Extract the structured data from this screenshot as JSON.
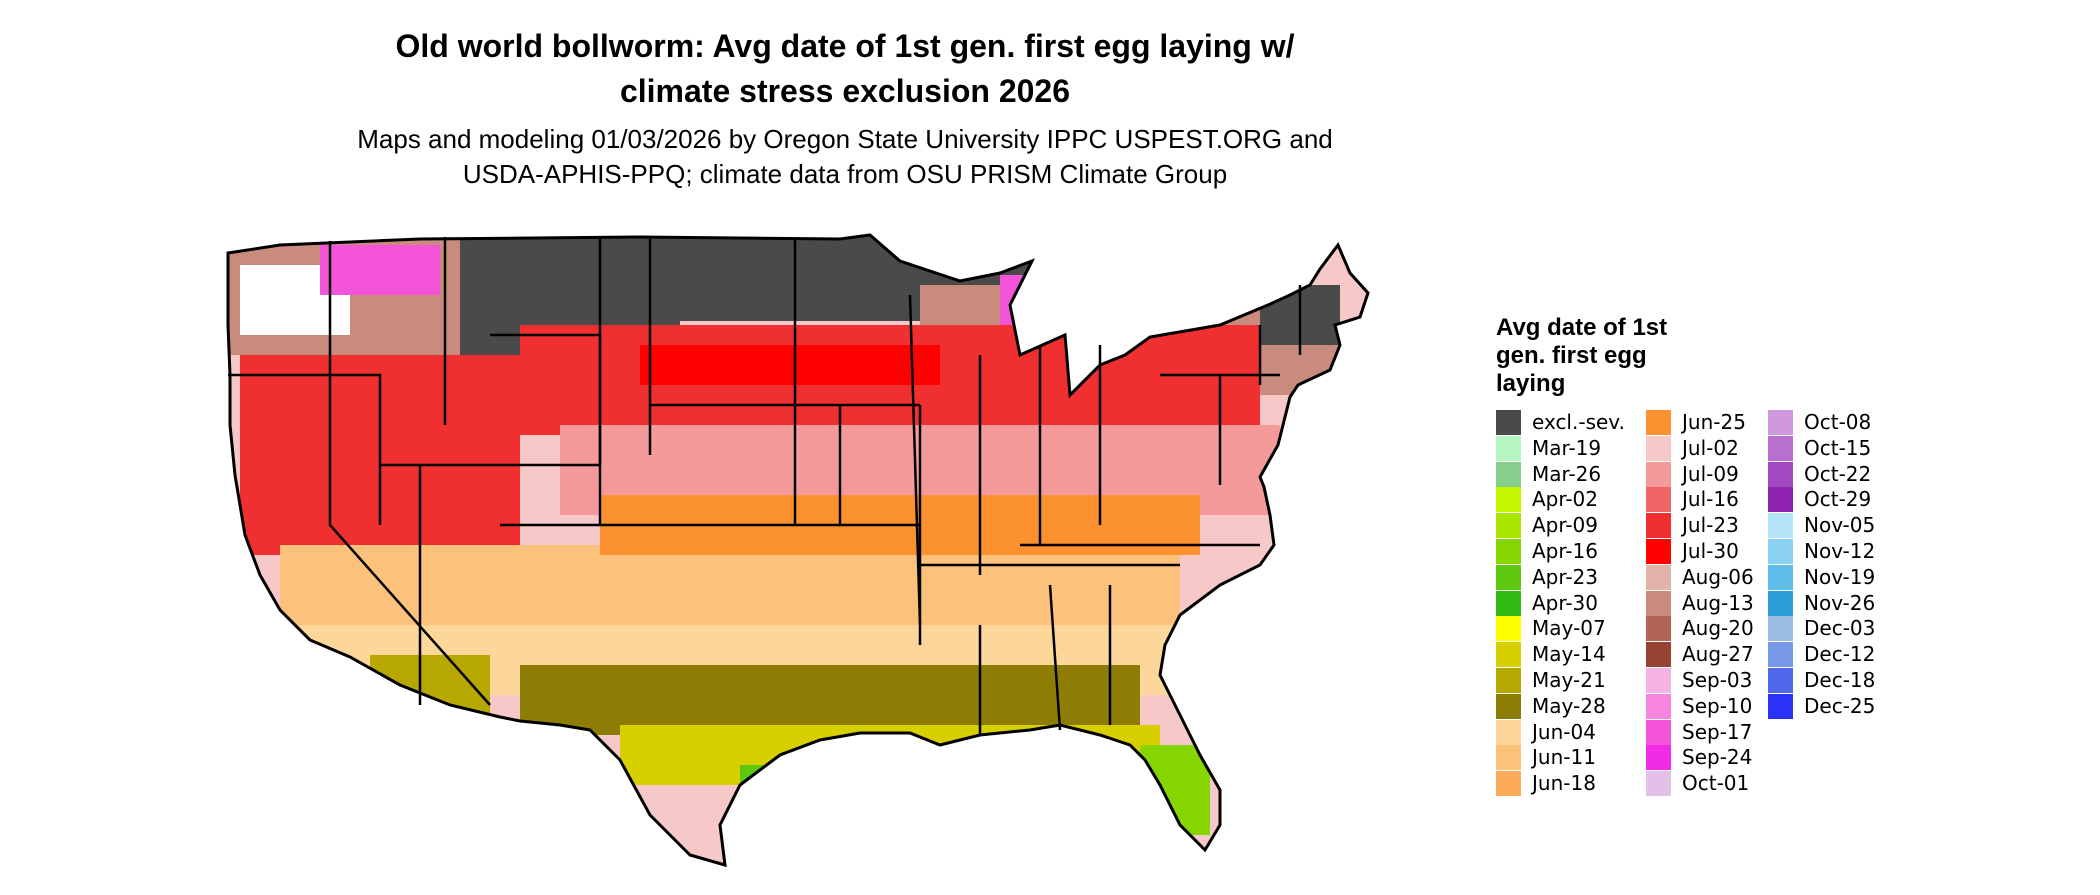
{
  "title_line1": "Old world bollworm: Avg date of 1st gen. first egg laying w/",
  "title_line2": "climate stress exclusion 2026",
  "subtitle_line1": "Maps and modeling 01/03/2026 by Oregon State University IPPC USPEST.ORG and",
  "subtitle_line2": "USDA-APHIS-PPQ; climate data from OSU PRISM Climate Group",
  "legend": {
    "title_line1": "Avg date of 1st",
    "title_line2": "gen. first egg",
    "title_line3": "laying",
    "columns": [
      [
        {
          "label": "excl.-sev.",
          "color": "#4a4a4a"
        },
        {
          "label": "Mar-19",
          "color": "#b4f5c0"
        },
        {
          "label": "Mar-26",
          "color": "#86cf8c"
        },
        {
          "label": "Apr-02",
          "color": "#c6f500"
        },
        {
          "label": "Apr-09",
          "color": "#a8e600"
        },
        {
          "label": "Apr-16",
          "color": "#86d400"
        },
        {
          "label": "Apr-23",
          "color": "#5ec710"
        },
        {
          "label": "Apr-30",
          "color": "#2fbb12"
        },
        {
          "label": "May-07",
          "color": "#ffff00"
        },
        {
          "label": "May-14",
          "color": "#d8cf00"
        },
        {
          "label": "May-21",
          "color": "#b6a800"
        },
        {
          "label": "May-28",
          "color": "#8d7d05"
        },
        {
          "label": "Jun-04",
          "color": "#fdd79a"
        },
        {
          "label": "Jun-11",
          "color": "#fcc27c"
        },
        {
          "label": "Jun-18",
          "color": "#fcab5b"
        }
      ],
      [
        {
          "label": "Jun-25",
          "color": "#fb922f"
        },
        {
          "label": "Jul-02",
          "color": "#f6c8c8"
        },
        {
          "label": "Jul-09",
          "color": "#f49a9a"
        },
        {
          "label": "Jul-16",
          "color": "#f06565"
        },
        {
          "label": "Jul-23",
          "color": "#f03030"
        },
        {
          "label": "Jul-30",
          "color": "#ff0000"
        },
        {
          "label": "Aug-06",
          "color": "#e2b3a8"
        },
        {
          "label": "Aug-13",
          "color": "#c98b7e"
        },
        {
          "label": "Aug-20",
          "color": "#b06556"
        },
        {
          "label": "Aug-27",
          "color": "#964333"
        },
        {
          "label": "Sep-03",
          "color": "#f7b2e4"
        },
        {
          "label": "Sep-10",
          "color": "#f585de"
        },
        {
          "label": "Sep-17",
          "color": "#f455d8"
        },
        {
          "label": "Sep-24",
          "color": "#f02ce8"
        },
        {
          "label": "Oct-01",
          "color": "#e2c0e8"
        }
      ],
      [
        {
          "label": "Oct-08",
          "color": "#cf98dc"
        },
        {
          "label": "Oct-15",
          "color": "#b870d0"
        },
        {
          "label": "Oct-22",
          "color": "#a248c0"
        },
        {
          "label": "Oct-29",
          "color": "#8c22ae"
        },
        {
          "label": "Nov-05",
          "color": "#b4e4f8"
        },
        {
          "label": "Nov-12",
          "color": "#8cd2f2"
        },
        {
          "label": "Nov-19",
          "color": "#5ebce8"
        },
        {
          "label": "Nov-26",
          "color": "#2c9ed8"
        },
        {
          "label": "Dec-03",
          "color": "#9cbce6"
        },
        {
          "label": "Dec-12",
          "color": "#7898e8"
        },
        {
          "label": "Dec-18",
          "color": "#5068ec"
        },
        {
          "label": "Dec-25",
          "color": "#2a32f6"
        }
      ]
    ]
  }
}
